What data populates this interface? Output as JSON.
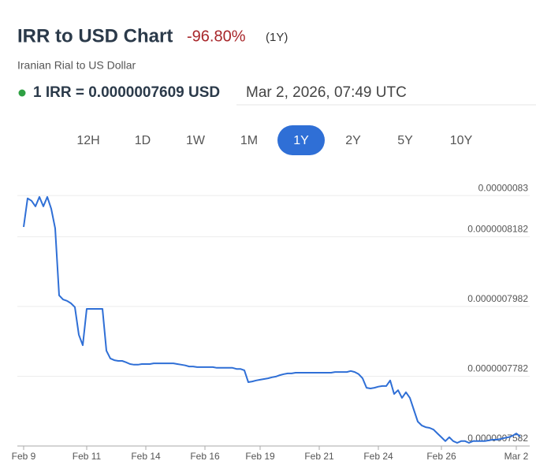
{
  "header": {
    "title": "IRR to USD Chart",
    "change": "-96.80%",
    "change_period": "(1Y)",
    "subtitle": "Iranian Rial to US Dollar",
    "rate": "1 IRR = 0.0000007609 USD",
    "timestamp": "Mar 2, 2026, 07:49 UTC"
  },
  "range_selector": {
    "options": [
      "12H",
      "1D",
      "1W",
      "1M",
      "1Y",
      "2Y",
      "5Y",
      "10Y"
    ],
    "active": "1Y"
  },
  "chart_data": {
    "type": "line",
    "series": [
      {
        "color": "#2f6fd6",
        "values": [
          8.21e-07,
          8.292e-07,
          8.285e-07,
          8.269e-07,
          8.296e-07,
          8.269e-07,
          8.296e-07,
          8.262e-07,
          8.206e-07,
          8.014e-07,
          8.002e-07,
          7.998e-07,
          7.991e-07,
          7.98e-07,
          7.901e-07,
          7.871e-07,
          7.975e-07,
          7.975e-07,
          7.975e-07,
          7.975e-07,
          7.975e-07,
          7.855e-07,
          7.833e-07,
          7.828e-07,
          7.826e-07,
          7.826e-07,
          7.822e-07,
          7.817e-07,
          7.815e-07,
          7.815e-07,
          7.817e-07,
          7.817e-07,
          7.817e-07,
          7.819e-07,
          7.819e-07,
          7.819e-07,
          7.819e-07,
          7.819e-07,
          7.819e-07,
          7.817e-07,
          7.815e-07,
          7.813e-07,
          7.81e-07,
          7.81e-07,
          7.808e-07,
          7.808e-07,
          7.808e-07,
          7.808e-07,
          7.808e-07,
          7.806e-07,
          7.806e-07,
          7.806e-07,
          7.806e-07,
          7.806e-07,
          7.803e-07,
          7.803e-07,
          7.799e-07,
          7.765e-07,
          7.767e-07,
          7.77e-07,
          7.772e-07,
          7.774e-07,
          7.776e-07,
          7.779e-07,
          7.781e-07,
          7.785e-07,
          7.788e-07,
          7.79e-07,
          7.79e-07,
          7.792e-07,
          7.792e-07,
          7.792e-07,
          7.792e-07,
          7.792e-07,
          7.792e-07,
          7.792e-07,
          7.792e-07,
          7.792e-07,
          7.792e-07,
          7.794e-07,
          7.794e-07,
          7.794e-07,
          7.794e-07,
          7.797e-07,
          7.794e-07,
          7.788e-07,
          7.776e-07,
          7.749e-07,
          7.747e-07,
          7.749e-07,
          7.752e-07,
          7.754e-07,
          7.754e-07,
          7.77e-07,
          7.731e-07,
          7.742e-07,
          7.72e-07,
          7.736e-07,
          7.72e-07,
          7.686e-07,
          7.652e-07,
          7.641e-07,
          7.636e-07,
          7.634e-07,
          7.629e-07,
          7.618e-07,
          7.607e-07,
          7.596e-07,
          7.607e-07,
          7.596e-07,
          7.591e-07,
          7.596e-07,
          7.596e-07,
          7.591e-07,
          7.596e-07,
          7.596e-07,
          7.596e-07,
          7.596e-07,
          7.598e-07,
          7.6e-07,
          7.6e-07,
          7.602e-07,
          7.605e-07,
          7.607e-07,
          7.611e-07,
          7.618e-07,
          7.609e-07
        ]
      }
    ],
    "xlim": [
      0,
      126
    ],
    "xticks": [
      {
        "value": 0,
        "label": "Feb 9"
      },
      {
        "value": 16,
        "label": "Feb 11"
      },
      {
        "value": 31,
        "label": "Feb 14"
      },
      {
        "value": 46,
        "label": "Feb 16"
      },
      {
        "value": 60,
        "label": "Feb 19"
      },
      {
        "value": 75,
        "label": "Feb 21"
      },
      {
        "value": 90,
        "label": "Feb 24"
      },
      {
        "value": 106,
        "label": "Feb 26"
      },
      {
        "value": 125,
        "label": "Mar 2"
      }
    ],
    "ylim": [
      7.582e-07,
      8.35e-07
    ],
    "yticks": [
      {
        "value": 8.3e-07,
        "label": "0.00000083"
      },
      {
        "value": 8.182e-07,
        "label": "0.0000008182"
      },
      {
        "value": 7.982e-07,
        "label": "0.0000007982"
      },
      {
        "value": 7.782e-07,
        "label": "0.0000007782"
      },
      {
        "value": 7.582e-07,
        "label": "0.0000007582"
      }
    ],
    "grid": true
  }
}
